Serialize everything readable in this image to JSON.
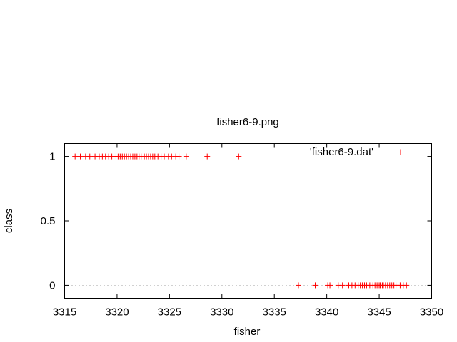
{
  "chart_data": {
    "type": "scatter",
    "title": "fisher6-9.png",
    "xlabel": "fisher",
    "ylabel": "class",
    "xlim": [
      3315,
      3350
    ],
    "ylim": [
      -0.1,
      1.1
    ],
    "xticks": [
      "3315",
      "3320",
      "3325",
      "3330",
      "3335",
      "3340",
      "3345",
      "3350"
    ],
    "yticks": [
      "0",
      "0.5",
      "1"
    ],
    "legend_position": "top-right",
    "zero_line": true,
    "marker": "+",
    "series": [
      {
        "name": "'fisher6-9.dat'",
        "color": "#ff0000",
        "points": [
          [
            3316.0,
            1
          ],
          [
            3316.5,
            1
          ],
          [
            3317.0,
            1
          ],
          [
            3317.4,
            1
          ],
          [
            3317.9,
            1
          ],
          [
            3318.3,
            1
          ],
          [
            3318.6,
            1
          ],
          [
            3318.9,
            1
          ],
          [
            3319.2,
            1
          ],
          [
            3319.5,
            1
          ],
          [
            3319.7,
            1
          ],
          [
            3319.9,
            1
          ],
          [
            3320.1,
            1
          ],
          [
            3320.3,
            1
          ],
          [
            3320.5,
            1
          ],
          [
            3320.7,
            1
          ],
          [
            3320.9,
            1
          ],
          [
            3321.1,
            1
          ],
          [
            3321.3,
            1
          ],
          [
            3321.5,
            1
          ],
          [
            3321.7,
            1
          ],
          [
            3321.9,
            1
          ],
          [
            3322.1,
            1
          ],
          [
            3322.3,
            1
          ],
          [
            3322.6,
            1
          ],
          [
            3322.8,
            1
          ],
          [
            3323.0,
            1
          ],
          [
            3323.2,
            1
          ],
          [
            3323.4,
            1
          ],
          [
            3323.6,
            1
          ],
          [
            3323.9,
            1
          ],
          [
            3324.2,
            1
          ],
          [
            3324.5,
            1
          ],
          [
            3324.9,
            1
          ],
          [
            3325.2,
            1
          ],
          [
            3325.6,
            1
          ],
          [
            3325.9,
            1
          ],
          [
            3326.6,
            1
          ],
          [
            3328.6,
            1
          ],
          [
            3331.6,
            1
          ],
          [
            3337.3,
            0
          ],
          [
            3338.9,
            0
          ],
          [
            3340.1,
            0
          ],
          [
            3340.3,
            0
          ],
          [
            3341.1,
            0
          ],
          [
            3341.5,
            0
          ],
          [
            3342.1,
            0
          ],
          [
            3342.4,
            0
          ],
          [
            3342.7,
            0
          ],
          [
            3343.0,
            0
          ],
          [
            3343.2,
            0
          ],
          [
            3343.4,
            0
          ],
          [
            3343.6,
            0
          ],
          [
            3343.8,
            0
          ],
          [
            3344.1,
            0
          ],
          [
            3344.4,
            0
          ],
          [
            3344.6,
            0
          ],
          [
            3344.8,
            0
          ],
          [
            3345.0,
            0
          ],
          [
            3345.1,
            0
          ],
          [
            3345.3,
            0
          ],
          [
            3345.4,
            0
          ],
          [
            3345.6,
            0
          ],
          [
            3345.8,
            0
          ],
          [
            3346.0,
            0
          ],
          [
            3346.2,
            0
          ],
          [
            3346.4,
            0
          ],
          [
            3346.6,
            0
          ],
          [
            3346.8,
            0
          ],
          [
            3347.0,
            0
          ],
          [
            3347.3,
            0
          ],
          [
            3347.6,
            0
          ]
        ]
      }
    ]
  }
}
